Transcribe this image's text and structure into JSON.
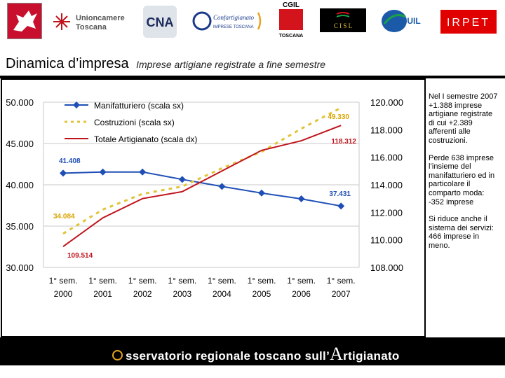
{
  "header": {
    "logos": [
      {
        "name": "regione-toscana",
        "icon": "pegasus-icon"
      },
      {
        "name": "unioncamere",
        "lines": [
          "Unioncamere",
          "Toscana"
        ]
      },
      {
        "name": "cna",
        "text": "CNA"
      },
      {
        "name": "confartigianato",
        "lines": [
          "Confartigianato",
          "IMPRESE TOSCANA"
        ]
      },
      {
        "name": "cgil",
        "lines": [
          "CGIL",
          "TOSCANA"
        ]
      },
      {
        "name": "cisl",
        "text": "C I S L"
      },
      {
        "name": "uil",
        "text": "UIL"
      },
      {
        "name": "irpet",
        "text": "IRPET"
      }
    ]
  },
  "title": {
    "main": "Dinamica d’impresa",
    "subtitle": "Imprese artigiane registrate a fine semestre"
  },
  "chart_data": {
    "type": "line",
    "title": "Imprese artigiane registrate a fine semestre",
    "categories": [
      [
        "1° sem.",
        "2000"
      ],
      [
        "1° sem.",
        "2001"
      ],
      [
        "1° sem.",
        "2002"
      ],
      [
        "1° sem.",
        "2003"
      ],
      [
        "1° sem.",
        "2004"
      ],
      [
        "1° sem.",
        "2005"
      ],
      [
        "1° sem.",
        "2006"
      ],
      [
        "1° sem.",
        "2007"
      ]
    ],
    "y_left": {
      "min": 30000,
      "max": 50000,
      "ticks": [
        "30.000",
        "35.000",
        "40.000",
        "45.000",
        "50.000"
      ]
    },
    "y_right": {
      "min": 108000,
      "max": 120000,
      "ticks": [
        "108.000",
        "110.000",
        "112.000",
        "114.000",
        "116.000",
        "118.000",
        "120.000"
      ]
    },
    "grid": true,
    "legend_position": "top-left",
    "series": [
      {
        "name": "Manifatturiero (scala sx)",
        "axis": "left",
        "color": "#1f4fb5",
        "style": "solid-markers",
        "values": [
          41408,
          41550,
          41550,
          40650,
          39800,
          39000,
          38300,
          37431
        ],
        "labels": {
          "first": "41.408",
          "last": "37.431"
        }
      },
      {
        "name": "Costruzioni (scala sx)",
        "axis": "left",
        "color": "#e0c43a",
        "style": "dashed",
        "values": [
          34084,
          37000,
          38900,
          39800,
          42000,
          44000,
          46800,
          49330
        ],
        "labels": {
          "first": "34.084",
          "last": "49.330"
        }
      },
      {
        "name": "Totale Artigianato (scala dx)",
        "axis": "right",
        "color": "#c0141c",
        "style": "solid",
        "values": [
          109514,
          111600,
          113000,
          113500,
          115000,
          116500,
          117200,
          118312
        ],
        "labels": {
          "first": "109.514",
          "last": "118.312"
        }
      }
    ]
  },
  "notes": [
    "Nel I semestre 2007 +1.388 imprese artigiane registrate di cui +2.389 afferenti alle costruzioni.",
    "Perde 638 imprese l’insieme del manifatturiero ed in particolare il comparto moda: -352 imprese",
    "Si riduce anche il sistema dei servizi: 466 imprese in meno."
  ],
  "footer": {
    "prefix": "sservatorio regionale toscano sull’",
    "big_letter": "A",
    "suffix": "rtigianato",
    "accent": "#e8a31c"
  }
}
